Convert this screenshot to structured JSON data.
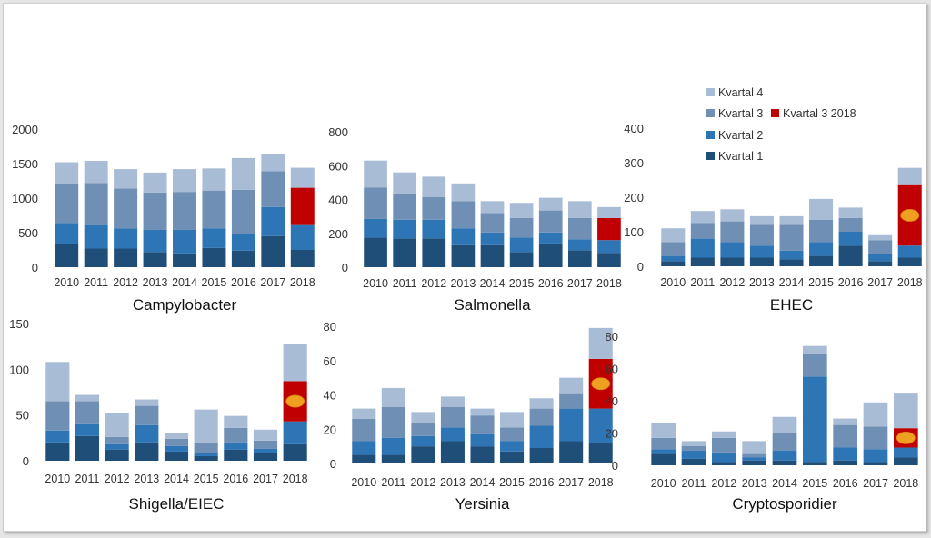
{
  "colors": {
    "Kvartal 1": "#1f4e79",
    "Kvartal 2": "#2e75b6",
    "Kvartal 3": "#6f8fb5",
    "Kvartal 4": "#a9bcd6",
    "Kvartal 3 2018": "#c00000",
    "marker": "#f0a020"
  },
  "legend": {
    "items": [
      "Kvartal 4",
      "Kvartal 3",
      "Kvartal 2",
      "Kvartal 1"
    ],
    "highlight": "Kvartal 3 2018"
  },
  "chart_data": [
    {
      "type": "bar",
      "stacked": true,
      "title": "Campylobacter",
      "categories": [
        "2010",
        "2011",
        "2012",
        "2013",
        "2014",
        "2015",
        "2016",
        "2017",
        "2018"
      ],
      "ylim": [
        0,
        2000
      ],
      "yticks": [
        0,
        500,
        1000,
        1500,
        2000
      ],
      "series": [
        {
          "name": "Kvartal 1",
          "values": [
            330,
            270,
            270,
            220,
            200,
            280,
            240,
            450,
            250
          ]
        },
        {
          "name": "Kvartal 2",
          "values": [
            310,
            340,
            290,
            320,
            340,
            280,
            240,
            420,
            360
          ]
        },
        {
          "name": "Kvartal 3",
          "values": [
            570,
            610,
            580,
            540,
            550,
            550,
            640,
            520,
            540
          ]
        },
        {
          "name": "Kvartal 4",
          "values": [
            310,
            320,
            280,
            290,
            330,
            320,
            460,
            250,
            290
          ]
        }
      ],
      "highlight": {
        "category": "2018",
        "series": "Kvartal 3",
        "marker": false
      }
    },
    {
      "type": "bar",
      "stacked": true,
      "title": "Salmonella",
      "categories": [
        "2010",
        "2011",
        "2012",
        "2013",
        "2014",
        "2015",
        "2016",
        "2017",
        "2018"
      ],
      "ylim": [
        0,
        800
      ],
      "yticks": [
        0,
        200,
        400,
        600,
        800
      ],
      "series": [
        {
          "name": "Kvartal 1",
          "values": [
            175,
            170,
            170,
            130,
            130,
            90,
            140,
            100,
            85
          ]
        },
        {
          "name": "Kvartal 2",
          "values": [
            110,
            110,
            110,
            100,
            75,
            85,
            65,
            65,
            75
          ]
        },
        {
          "name": "Kvartal 3",
          "values": [
            185,
            155,
            135,
            160,
            115,
            115,
            130,
            125,
            130
          ]
        },
        {
          "name": "Kvartal 4",
          "values": [
            160,
            125,
            120,
            105,
            70,
            90,
            75,
            100,
            65
          ]
        }
      ],
      "highlight": {
        "category": "2018",
        "series": "Kvartal 3",
        "marker": false
      }
    },
    {
      "type": "bar",
      "stacked": true,
      "title": "EHEC",
      "categories": [
        "2010",
        "2011",
        "2012",
        "2013",
        "2014",
        "2015",
        "2016",
        "2017",
        "2018"
      ],
      "ylim": [
        0,
        400
      ],
      "yticks": [
        0,
        100,
        200,
        300,
        400
      ],
      "series": [
        {
          "name": "Kvartal 1",
          "values": [
            15,
            25,
            25,
            25,
            20,
            30,
            60,
            15,
            25
          ]
        },
        {
          "name": "Kvartal 2",
          "values": [
            15,
            55,
            45,
            35,
            25,
            40,
            40,
            20,
            35
          ]
        },
        {
          "name": "Kvartal 3",
          "values": [
            40,
            45,
            60,
            60,
            75,
            65,
            40,
            40,
            175
          ]
        },
        {
          "name": "Kvartal 4",
          "values": [
            40,
            35,
            35,
            25,
            25,
            60,
            30,
            15,
            50
          ]
        }
      ],
      "highlight": {
        "category": "2018",
        "series": "Kvartal 3",
        "marker": true
      }
    },
    {
      "type": "bar",
      "stacked": true,
      "title": "Shigella/EIEC",
      "categories": [
        "2010",
        "2011",
        "2012",
        "2013",
        "2014",
        "2015",
        "2016",
        "2017",
        "2018"
      ],
      "ylim": [
        0,
        150
      ],
      "yticks": [
        0,
        50,
        100,
        150
      ],
      "series": [
        {
          "name": "Kvartal 1",
          "values": [
            20,
            27,
            12,
            20,
            10,
            5,
            12,
            8,
            18
          ]
        },
        {
          "name": "Kvartal 2",
          "values": [
            13,
            13,
            6,
            19,
            6,
            3,
            8,
            5,
            25
          ]
        },
        {
          "name": "Kvartal 3",
          "values": [
            32,
            25,
            8,
            21,
            8,
            11,
            16,
            9,
            44
          ]
        },
        {
          "name": "Kvartal 4",
          "values": [
            43,
            7,
            26,
            7,
            6,
            37,
            13,
            12,
            41
          ]
        }
      ],
      "highlight": {
        "category": "2018",
        "series": "Kvartal 3",
        "marker": true
      }
    },
    {
      "type": "bar",
      "stacked": true,
      "title": "Yersinia",
      "categories": [
        "2010",
        "2011",
        "2012",
        "2013",
        "2014",
        "2015",
        "2016",
        "2017",
        "2018"
      ],
      "ylim": [
        0,
        80
      ],
      "yticks": [
        0,
        20,
        40,
        60,
        80
      ],
      "series": [
        {
          "name": "Kvartal 1",
          "values": [
            5,
            5,
            10,
            13,
            10,
            7,
            9,
            13,
            12
          ]
        },
        {
          "name": "Kvartal 2",
          "values": [
            8,
            10,
            6,
            8,
            7,
            6,
            13,
            19,
            20
          ]
        },
        {
          "name": "Kvartal 3",
          "values": [
            13,
            18,
            8,
            12,
            11,
            8,
            10,
            9,
            29
          ]
        },
        {
          "name": "Kvartal 4",
          "values": [
            6,
            11,
            6,
            6,
            4,
            9,
            6,
            9,
            18
          ]
        }
      ],
      "highlight": {
        "category": "2018",
        "series": "Kvartal 3",
        "marker": true
      }
    },
    {
      "type": "bar",
      "stacked": true,
      "title": "Cryptosporidier",
      "categories": [
        "2010",
        "2011",
        "2012",
        "2013",
        "2014",
        "2015",
        "2016",
        "2017",
        "2018"
      ],
      "ylim": [
        0,
        80
      ],
      "yticks": [
        0,
        20,
        40,
        60,
        80
      ],
      "series": [
        {
          "name": "Kvartal 1",
          "values": [
            7,
            4,
            2,
            3,
            3,
            2,
            3,
            2,
            5
          ]
        },
        {
          "name": "Kvartal 2",
          "values": [
            3,
            5,
            6,
            2,
            6,
            53,
            8,
            8,
            6
          ]
        },
        {
          "name": "Kvartal 3",
          "values": [
            7,
            3,
            9,
            2,
            11,
            14,
            14,
            14,
            12
          ]
        },
        {
          "name": "Kvartal 4",
          "values": [
            9,
            3,
            4,
            8,
            10,
            5,
            4,
            15,
            22
          ]
        }
      ],
      "highlight": {
        "category": "2018",
        "series": "Kvartal 3",
        "marker": true
      }
    }
  ]
}
